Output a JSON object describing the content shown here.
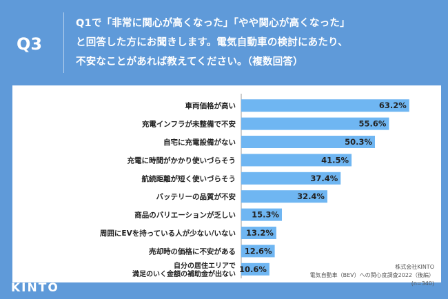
{
  "header": {
    "qnum": "Q3",
    "lines": [
      "Q1で「非常に関心が高くなった」「やや関心が高くなった」",
      "と回答した方にお聞きします。電気自動車の検討にあたり、",
      "不安なことがあれば教えてください。（複数回答）"
    ]
  },
  "logo": "KINTO",
  "credit": {
    "company": "株式会社KINTO",
    "survey": "電気自動車（BEV）への関心度調査2022（後編）",
    "n": "(n=340)"
  },
  "colors": {
    "bar": "#6fb6f2",
    "background": "#5f9ad9",
    "text": "#222222"
  },
  "chart_data": {
    "type": "bar",
    "orientation": "horizontal",
    "categories": [
      "車両価格が高い",
      "充電インフラが未整備で不安",
      "自宅に充電設備がない",
      "充電に時間がかかり使いづらそう",
      "航続距離が短く使いづらそう",
      "バッテリーの品質が不安",
      "商品のバリエーションが乏しい",
      "周囲にEVを持っている人が少ない/いない",
      "売却時の価格に不安がある",
      "自分の居住エリアで\n満足のいく金額の補助金が出ない"
    ],
    "values": [
      63.2,
      55.6,
      50.3,
      41.5,
      37.4,
      32.4,
      15.3,
      13.2,
      12.6,
      10.6
    ],
    "value_labels": [
      "63.2%",
      "55.6%",
      "50.3%",
      "41.5%",
      "37.4%",
      "32.4%",
      "15.3%",
      "13.2%",
      "12.6%",
      "10.6%"
    ],
    "xlim": [
      0,
      70
    ],
    "grid": false,
    "legend": "none"
  }
}
